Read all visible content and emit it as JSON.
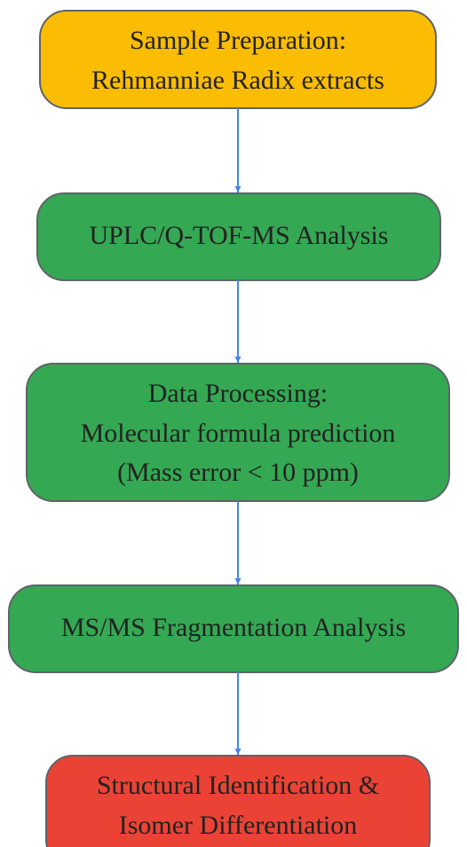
{
  "nodes": [
    {
      "lines": [
        "Sample Preparation:",
        "Rehmanniae Radix extracts"
      ]
    },
    {
      "lines": [
        "UPLC/Q-TOF-MS Analysis"
      ]
    },
    {
      "lines": [
        "Data Processing:",
        "Molecular formula prediction",
        "(Mass error < 10 ppm)"
      ]
    },
    {
      "lines": [
        "MS/MS Fragmentation Analysis"
      ]
    },
    {
      "lines": [
        "Structural Identification &",
        "Isomer Differentiation"
      ]
    }
  ]
}
